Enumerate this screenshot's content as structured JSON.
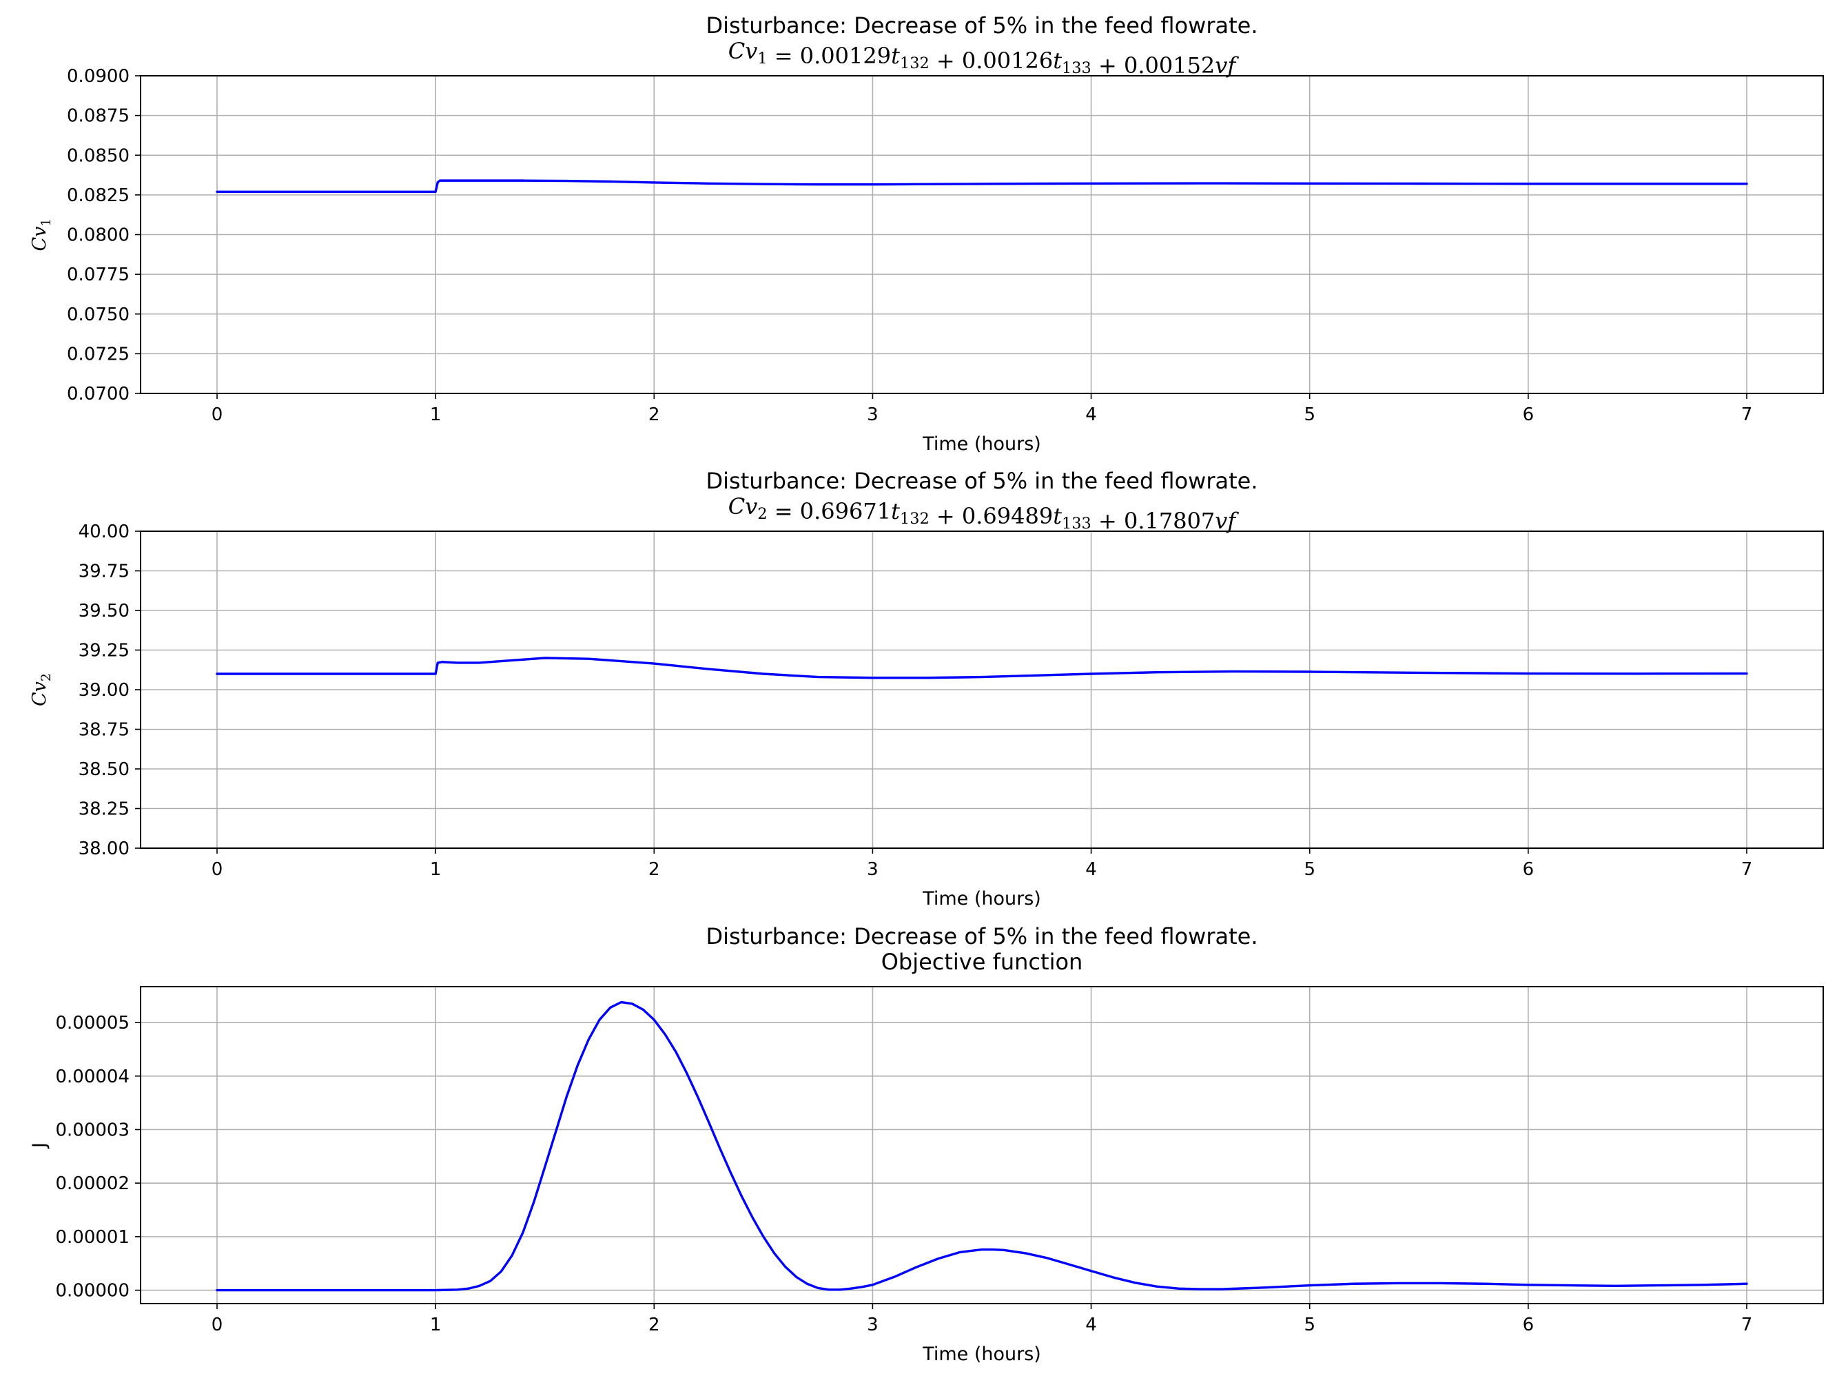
{
  "figure": {
    "background": "#ffffff",
    "line_color": "#0000ff",
    "grid_color": "#b0b0b0"
  },
  "chart_data": [
    {
      "type": "line",
      "title": "Disturbance: Decrease of 5% in the feed flowrate.",
      "subtitle_parts": [
        {
          "t": "Cv",
          "s": "i"
        },
        {
          "t": "1",
          "s": "sub"
        },
        {
          "t": " = 0.00129",
          "s": ""
        },
        {
          "t": "t",
          "s": "i"
        },
        {
          "t": "132",
          "s": "sub"
        },
        {
          "t": " + 0.00126",
          "s": ""
        },
        {
          "t": "t",
          "s": "i"
        },
        {
          "t": "133",
          "s": "sub"
        },
        {
          "t": " + 0.00152",
          "s": ""
        },
        {
          "t": "vf",
          "s": "i"
        }
      ],
      "ylabel_parts": [
        {
          "t": "Cv",
          "s": "i"
        },
        {
          "t": "1",
          "s": "sub"
        }
      ],
      "xlabel": "Time (hours)",
      "xlim": [
        -0.35,
        7.35
      ],
      "ylim": [
        0.07,
        0.09
      ],
      "xticks": [
        0,
        1,
        2,
        3,
        4,
        5,
        6,
        7
      ],
      "xtick_labels": [
        "0",
        "1",
        "2",
        "3",
        "4",
        "5",
        "6",
        "7"
      ],
      "yticks": [
        0.07,
        0.0725,
        0.075,
        0.0775,
        0.08,
        0.0825,
        0.085,
        0.0875,
        0.09
      ],
      "ytick_labels": [
        "0.0700",
        "0.0725",
        "0.0750",
        "0.0775",
        "0.0800",
        "0.0825",
        "0.0850",
        "0.0875",
        "0.0900"
      ],
      "grid": true,
      "series": [
        {
          "color": "#0000ff",
          "x": [
            0,
            1.0,
            1.01,
            1.02,
            1.05,
            1.2,
            1.4,
            1.6,
            1.8,
            2.0,
            2.25,
            2.5,
            2.75,
            3.0,
            3.3,
            3.6,
            4.0,
            4.5,
            5.0,
            5.5,
            6.0,
            6.5,
            7.0
          ],
          "y": [
            0.0827,
            0.0827,
            0.0833,
            0.0834,
            0.0834,
            0.0834,
            0.0834,
            0.08338,
            0.08334,
            0.08328,
            0.08322,
            0.08318,
            0.08316,
            0.08316,
            0.08318,
            0.0832,
            0.08322,
            0.08323,
            0.08322,
            0.08321,
            0.0832,
            0.0832,
            0.0832
          ]
        }
      ]
    },
    {
      "type": "line",
      "title": "Disturbance: Decrease of 5% in the feed flowrate.",
      "subtitle_parts": [
        {
          "t": "Cv",
          "s": "i"
        },
        {
          "t": "2",
          "s": "sub"
        },
        {
          "t": " = 0.69671",
          "s": ""
        },
        {
          "t": "t",
          "s": "i"
        },
        {
          "t": "132",
          "s": "sub"
        },
        {
          "t": " + 0.69489",
          "s": ""
        },
        {
          "t": "t",
          "s": "i"
        },
        {
          "t": "133",
          "s": "sub"
        },
        {
          "t": " + 0.17807",
          "s": ""
        },
        {
          "t": "vf",
          "s": "i"
        }
      ],
      "ylabel_parts": [
        {
          "t": "Cv",
          "s": "i"
        },
        {
          "t": "2",
          "s": "sub"
        }
      ],
      "xlabel": "Time (hours)",
      "xlim": [
        -0.35,
        7.35
      ],
      "ylim": [
        38.0,
        40.0
      ],
      "xticks": [
        0,
        1,
        2,
        3,
        4,
        5,
        6,
        7
      ],
      "xtick_labels": [
        "0",
        "1",
        "2",
        "3",
        "4",
        "5",
        "6",
        "7"
      ],
      "yticks": [
        38.0,
        38.25,
        38.5,
        38.75,
        39.0,
        39.25,
        39.5,
        39.75,
        40.0
      ],
      "ytick_labels": [
        "38.00",
        "38.25",
        "38.50",
        "38.75",
        "39.00",
        "39.25",
        "39.50",
        "39.75",
        "40.00"
      ],
      "grid": true,
      "series": [
        {
          "color": "#0000ff",
          "x": [
            0,
            1.0,
            1.01,
            1.03,
            1.1,
            1.2,
            1.3,
            1.5,
            1.7,
            2.0,
            2.25,
            2.5,
            2.75,
            3.0,
            3.25,
            3.5,
            3.75,
            4.0,
            4.3,
            4.65,
            5.0,
            5.5,
            6.0,
            6.5,
            7.0
          ],
          "y": [
            39.1,
            39.1,
            39.17,
            39.175,
            39.17,
            39.17,
            39.18,
            39.2,
            39.195,
            39.165,
            39.13,
            39.1,
            39.08,
            39.075,
            39.075,
            39.08,
            39.09,
            39.1,
            39.11,
            39.115,
            39.113,
            39.107,
            39.102,
            39.101,
            39.102
          ]
        }
      ]
    },
    {
      "type": "line",
      "title": "Disturbance: Decrease of 5% in the feed flowrate.",
      "subtitle_parts": [
        {
          "t": "Objective function",
          "s": "plain"
        }
      ],
      "ylabel_parts": [
        {
          "t": "J",
          "s": "plain"
        }
      ],
      "xlabel": "Time (hours)",
      "xlim": [
        -0.35,
        7.35
      ],
      "ylim": [
        -2.5e-06,
        5.67e-05
      ],
      "xticks": [
        0,
        1,
        2,
        3,
        4,
        5,
        6,
        7
      ],
      "xtick_labels": [
        "0",
        "1",
        "2",
        "3",
        "4",
        "5",
        "6",
        "7"
      ],
      "yticks": [
        0,
        1e-05,
        2e-05,
        3e-05,
        4e-05,
        5e-05
      ],
      "ytick_labels": [
        "0.00000",
        "0.00001",
        "0.00002",
        "0.00003",
        "0.00004",
        "0.00005"
      ],
      "grid": true,
      "series": [
        {
          "color": "#0000ff",
          "x": [
            0,
            1.0,
            1.1,
            1.15,
            1.2,
            1.25,
            1.3,
            1.35,
            1.4,
            1.45,
            1.5,
            1.55,
            1.6,
            1.65,
            1.7,
            1.75,
            1.8,
            1.85,
            1.9,
            1.95,
            2.0,
            2.05,
            2.1,
            2.15,
            2.2,
            2.25,
            2.3,
            2.35,
            2.4,
            2.45,
            2.5,
            2.55,
            2.6,
            2.65,
            2.7,
            2.75,
            2.8,
            2.85,
            2.9,
            2.95,
            3.0,
            3.1,
            3.2,
            3.3,
            3.4,
            3.5,
            3.55,
            3.6,
            3.7,
            3.8,
            3.9,
            4.0,
            4.1,
            4.2,
            4.3,
            4.4,
            4.5,
            4.6,
            4.8,
            5.0,
            5.2,
            5.4,
            5.6,
            5.8,
            6.0,
            6.2,
            6.4,
            6.6,
            6.8,
            7.0
          ],
          "y": [
            0,
            0,
            1e-07,
            3e-07,
            8e-07,
            1.7e-06,
            3.5e-06,
            6.5e-06,
            1.08e-05,
            1.65e-05,
            2.3e-05,
            2.96e-05,
            3.62e-05,
            4.2e-05,
            4.68e-05,
            5.05e-05,
            5.28e-05,
            5.38e-05,
            5.35e-05,
            5.24e-05,
            5.05e-05,
            4.78e-05,
            4.45e-05,
            4.05e-05,
            3.61e-05,
            3.14e-05,
            2.66e-05,
            2.2e-05,
            1.76e-05,
            1.36e-05,
            1e-05,
            6.9e-06,
            4.4e-06,
            2.5e-06,
            1.2e-06,
            4e-07,
            1e-07,
            1e-07,
            3e-07,
            6e-07,
            1e-06,
            2.5e-06,
            4.3e-06,
            5.9e-06,
            7.1e-06,
            7.6e-06,
            7.6e-06,
            7.5e-06,
            6.9e-06,
            6e-06,
            4.8e-06,
            3.6e-06,
            2.4e-06,
            1.4e-06,
            7e-07,
            3e-07,
            2e-07,
            2e-07,
            5e-07,
            9e-07,
            1.2e-06,
            1.3e-06,
            1.3e-06,
            1.2e-06,
            1e-06,
            9e-07,
            8e-07,
            9e-07,
            1e-06,
            1.2e-06
          ]
        }
      ]
    }
  ]
}
